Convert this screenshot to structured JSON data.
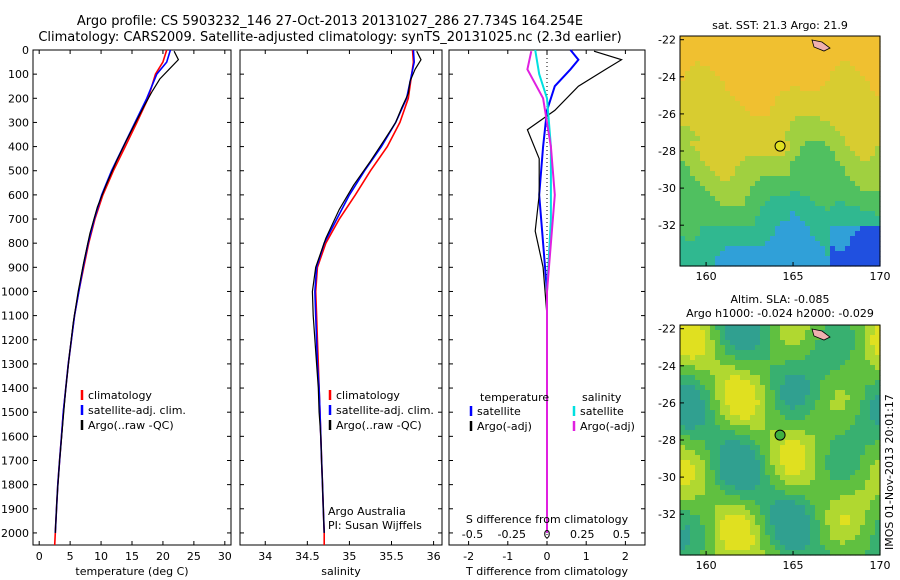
{
  "title_line1": "Argo profile: CS 5903232_146 27-Oct-2013 20131027_286 27.734S 164.254E",
  "title_line2": "Climatology: CARS2009. Satellite-adjusted climatology: synTS_20131025.nc (2.3d earlier)",
  "colors": {
    "climatology": "#ff0000",
    "satellite": "#0000ff",
    "argo": "#000000",
    "sal_sat": "#00e0e0",
    "sal_argo": "#e020e0"
  },
  "chart_data": [
    {
      "type": "line",
      "xlabel": "temperature (deg C)",
      "xlim": [
        -1,
        31
      ],
      "ylim": [
        0,
        2050
      ],
      "xticks": [
        0,
        5,
        10,
        15,
        20,
        25,
        30
      ],
      "yticks": [
        0,
        100,
        200,
        300,
        400,
        500,
        600,
        700,
        800,
        900,
        1000,
        1100,
        1200,
        1300,
        1400,
        1500,
        1600,
        1700,
        1800,
        1900,
        2000
      ],
      "legend": [
        "climatology",
        "satellite-adj. clim.",
        "Argo(..raw -QC)"
      ],
      "series": [
        {
          "name": "climatology",
          "values": [
            [
              20.6,
              0
            ],
            [
              20.0,
              50
            ],
            [
              18.8,
              100
            ],
            [
              17.6,
              200
            ],
            [
              15.8,
              300
            ],
            [
              13.9,
              400
            ],
            [
              12.0,
              500
            ],
            [
              10.3,
              600
            ],
            [
              9.0,
              700
            ],
            [
              8.0,
              800
            ],
            [
              7.2,
              900
            ],
            [
              6.4,
              1000
            ],
            [
              5.7,
              1100
            ],
            [
              5.2,
              1200
            ],
            [
              4.7,
              1300
            ],
            [
              4.3,
              1400
            ],
            [
              3.9,
              1500
            ],
            [
              3.6,
              1600
            ],
            [
              3.3,
              1700
            ],
            [
              3.0,
              1800
            ],
            [
              2.8,
              1900
            ],
            [
              2.6,
              2000
            ],
            [
              2.5,
              2050
            ]
          ]
        },
        {
          "name": "satellite-adj. clim.",
          "values": [
            [
              21.2,
              0
            ],
            [
              20.6,
              50
            ],
            [
              19.0,
              100
            ],
            [
              17.4,
              200
            ],
            [
              15.5,
              300
            ],
            [
              13.6,
              400
            ],
            [
              11.7,
              500
            ],
            [
              10.1,
              600
            ],
            [
              8.9,
              700
            ],
            [
              7.9,
              800
            ],
            [
              7.1,
              900
            ],
            [
              6.4,
              1000
            ],
            [
              5.7,
              1100
            ],
            [
              5.2,
              1200
            ],
            [
              4.7,
              1300
            ],
            [
              4.3,
              1400
            ],
            [
              3.9,
              1500
            ],
            [
              3.6,
              1600
            ],
            [
              3.3,
              1700
            ],
            [
              3.0,
              1800
            ],
            [
              2.8,
              1900
            ],
            [
              2.6,
              2000
            ]
          ]
        },
        {
          "name": "Argo(..raw -QC)",
          "values": [
            [
              21.8,
              5
            ],
            [
              22.5,
              40
            ],
            [
              21.0,
              80
            ],
            [
              19.5,
              120
            ],
            [
              18.3,
              170
            ],
            [
              17.0,
              230
            ],
            [
              15.8,
              290
            ],
            [
              14.2,
              370
            ],
            [
              12.5,
              460
            ],
            [
              10.8,
              560
            ],
            [
              9.4,
              650
            ],
            [
              8.2,
              760
            ],
            [
              7.2,
              880
            ],
            [
              6.3,
              1000
            ],
            [
              5.5,
              1130
            ],
            [
              4.9,
              1260
            ],
            [
              4.3,
              1400
            ],
            [
              3.8,
              1550
            ],
            [
              3.3,
              1700
            ],
            [
              2.9,
              1850
            ],
            [
              2.6,
              2000
            ]
          ]
        }
      ]
    },
    {
      "type": "line",
      "xlabel": "salinity",
      "xlim": [
        33.7,
        36.1
      ],
      "ylim": [
        0,
        2050
      ],
      "xticks": [
        34,
        34.5,
        35,
        35.5,
        36
      ],
      "xticklabels": [
        "34",
        "34.5",
        "35",
        "35.5",
        "36"
      ],
      "legend": [
        "climatology",
        "satellite-adj. clim.",
        "Argo(..raw -QC)"
      ],
      "annotation": [
        "Argo Australia",
        "PI: Susan Wijffels"
      ],
      "series": [
        {
          "name": "climatology",
          "values": [
            [
              35.75,
              0
            ],
            [
              35.76,
              50
            ],
            [
              35.74,
              100
            ],
            [
              35.7,
              200
            ],
            [
              35.6,
              300
            ],
            [
              35.45,
              400
            ],
            [
              35.25,
              500
            ],
            [
              35.07,
              600
            ],
            [
              34.88,
              700
            ],
            [
              34.72,
              800
            ],
            [
              34.62,
              900
            ],
            [
              34.6,
              1000
            ],
            [
              34.61,
              1100
            ],
            [
              34.62,
              1200
            ],
            [
              34.63,
              1300
            ],
            [
              34.64,
              1400
            ],
            [
              34.65,
              1500
            ],
            [
              34.66,
              1600
            ],
            [
              34.67,
              1700
            ],
            [
              34.68,
              1800
            ],
            [
              34.69,
              1900
            ],
            [
              34.7,
              2000
            ],
            [
              34.7,
              2050
            ]
          ]
        },
        {
          "name": "satellite-adj. clim.",
          "values": [
            [
              35.76,
              0
            ],
            [
              35.77,
              50
            ],
            [
              35.74,
              100
            ],
            [
              35.68,
              200
            ],
            [
              35.55,
              300
            ],
            [
              35.38,
              400
            ],
            [
              35.18,
              500
            ],
            [
              35.0,
              600
            ],
            [
              34.85,
              700
            ],
            [
              34.7,
              800
            ],
            [
              34.61,
              900
            ],
            [
              34.59,
              1000
            ],
            [
              34.6,
              1100
            ],
            [
              34.61,
              1200
            ],
            [
              34.62,
              1300
            ],
            [
              34.64,
              1400
            ],
            [
              34.65,
              1500
            ],
            [
              34.66,
              1600
            ],
            [
              34.67,
              1700
            ],
            [
              34.68,
              1800
            ],
            [
              34.69,
              1900
            ],
            [
              34.7,
              2000
            ]
          ]
        },
        {
          "name": "Argo(..raw -QC)",
          "values": [
            [
              35.8,
              5
            ],
            [
              35.85,
              40
            ],
            [
              35.78,
              80
            ],
            [
              35.72,
              130
            ],
            [
              35.7,
              180
            ],
            [
              35.62,
              240
            ],
            [
              35.55,
              300
            ],
            [
              35.42,
              370
            ],
            [
              35.25,
              460
            ],
            [
              35.05,
              560
            ],
            [
              34.88,
              660
            ],
            [
              34.72,
              780
            ],
            [
              34.6,
              900
            ],
            [
              34.56,
              1000
            ],
            [
              34.57,
              1100
            ],
            [
              34.59,
              1200
            ],
            [
              34.61,
              1300
            ],
            [
              34.63,
              1400
            ],
            [
              34.64,
              1500
            ],
            [
              34.66,
              1600
            ],
            [
              34.67,
              1700
            ],
            [
              34.68,
              1800
            ],
            [
              34.69,
              1900
            ],
            [
              34.7,
              2000
            ]
          ]
        }
      ]
    },
    {
      "type": "line",
      "xlabel": "T difference from climatology",
      "xlabel_top": "S difference from climatology",
      "xlim": [
        -2.5,
        2.5
      ],
      "ylim": [
        0,
        2050
      ],
      "xticks": [
        -2,
        -1,
        0,
        1,
        2
      ],
      "top_ticks": [
        "-0.5",
        "-0.25",
        "0",
        "0.25",
        "0.5"
      ],
      "legend_temp_title": "temperature",
      "legend_sal_title": "salinity",
      "legend_temp": [
        "satellite",
        "Argo(-adj)"
      ],
      "legend_sal": [
        "satellite",
        "Argo(-adj)"
      ],
      "series": [
        {
          "name": "satellite",
          "values": [
            [
              0.6,
              0
            ],
            [
              0.8,
              40
            ],
            [
              0.6,
              80
            ],
            [
              0.2,
              150
            ],
            [
              0.0,
              250
            ],
            [
              -0.1,
              400
            ],
            [
              -0.2,
              600
            ],
            [
              -0.1,
              800
            ],
            [
              0.0,
              1000
            ],
            [
              0.0,
              1500
            ],
            [
              0.0,
              2000
            ]
          ]
        },
        {
          "name": "Argo(-adj)",
          "values": [
            [
              1.2,
              5
            ],
            [
              1.9,
              40
            ],
            [
              1.5,
              80
            ],
            [
              0.8,
              150
            ],
            [
              0.2,
              250
            ],
            [
              -0.5,
              330
            ],
            [
              -0.2,
              450
            ],
            [
              -0.2,
              600
            ],
            [
              -0.3,
              750
            ],
            [
              -0.1,
              900
            ],
            [
              0.0,
              1100
            ],
            [
              0.0,
              1400
            ],
            [
              0.0,
              1700
            ],
            [
              0.0,
              2000
            ]
          ]
        },
        {
          "name": "satellite",
          "values": [
            [
              -0.3,
              0
            ],
            [
              -0.2,
              100
            ],
            [
              0.0,
              200
            ],
            [
              0.1,
              400
            ],
            [
              0.1,
              700
            ],
            [
              0.0,
              1000
            ],
            [
              0.0,
              1500
            ],
            [
              0.0,
              2000
            ]
          ]
        },
        {
          "name": "Argo(-adj)",
          "values": [
            [
              -0.4,
              5
            ],
            [
              -0.5,
              80
            ],
            [
              -0.1,
              200
            ],
            [
              0.1,
              400
            ],
            [
              0.2,
              600
            ],
            [
              0.1,
              800
            ],
            [
              0.0,
              1000
            ],
            [
              0.0,
              1500
            ],
            [
              0.0,
              2000
            ]
          ]
        }
      ]
    },
    {
      "type": "heatmap",
      "title": "sat. SST: 21.3 Argo: 21.9",
      "xticks": [
        "160",
        "165",
        "170"
      ],
      "yticks": [
        "-22",
        "-24",
        "-26",
        "-28",
        "-30",
        "-32"
      ],
      "xlim": [
        158.5,
        170
      ],
      "ylim": [
        -34.2,
        -21.8
      ],
      "marker": [
        164.254,
        -27.734
      ]
    },
    {
      "type": "heatmap",
      "title": "Altim. SLA: -0.085",
      "subtitle": "Argo h1000: -0.024 h2000: -0.029",
      "xticks": [
        "160",
        "165",
        "170"
      ],
      "yticks": [
        "-22",
        "-24",
        "-26",
        "-28",
        "-30",
        "-32"
      ],
      "xlim": [
        158.5,
        170
      ],
      "ylim": [
        -34.2,
        -21.8
      ],
      "marker": [
        164.254,
        -27.734
      ]
    }
  ],
  "imos_text": "IMOS 01-Nov-2013 20:01:17"
}
